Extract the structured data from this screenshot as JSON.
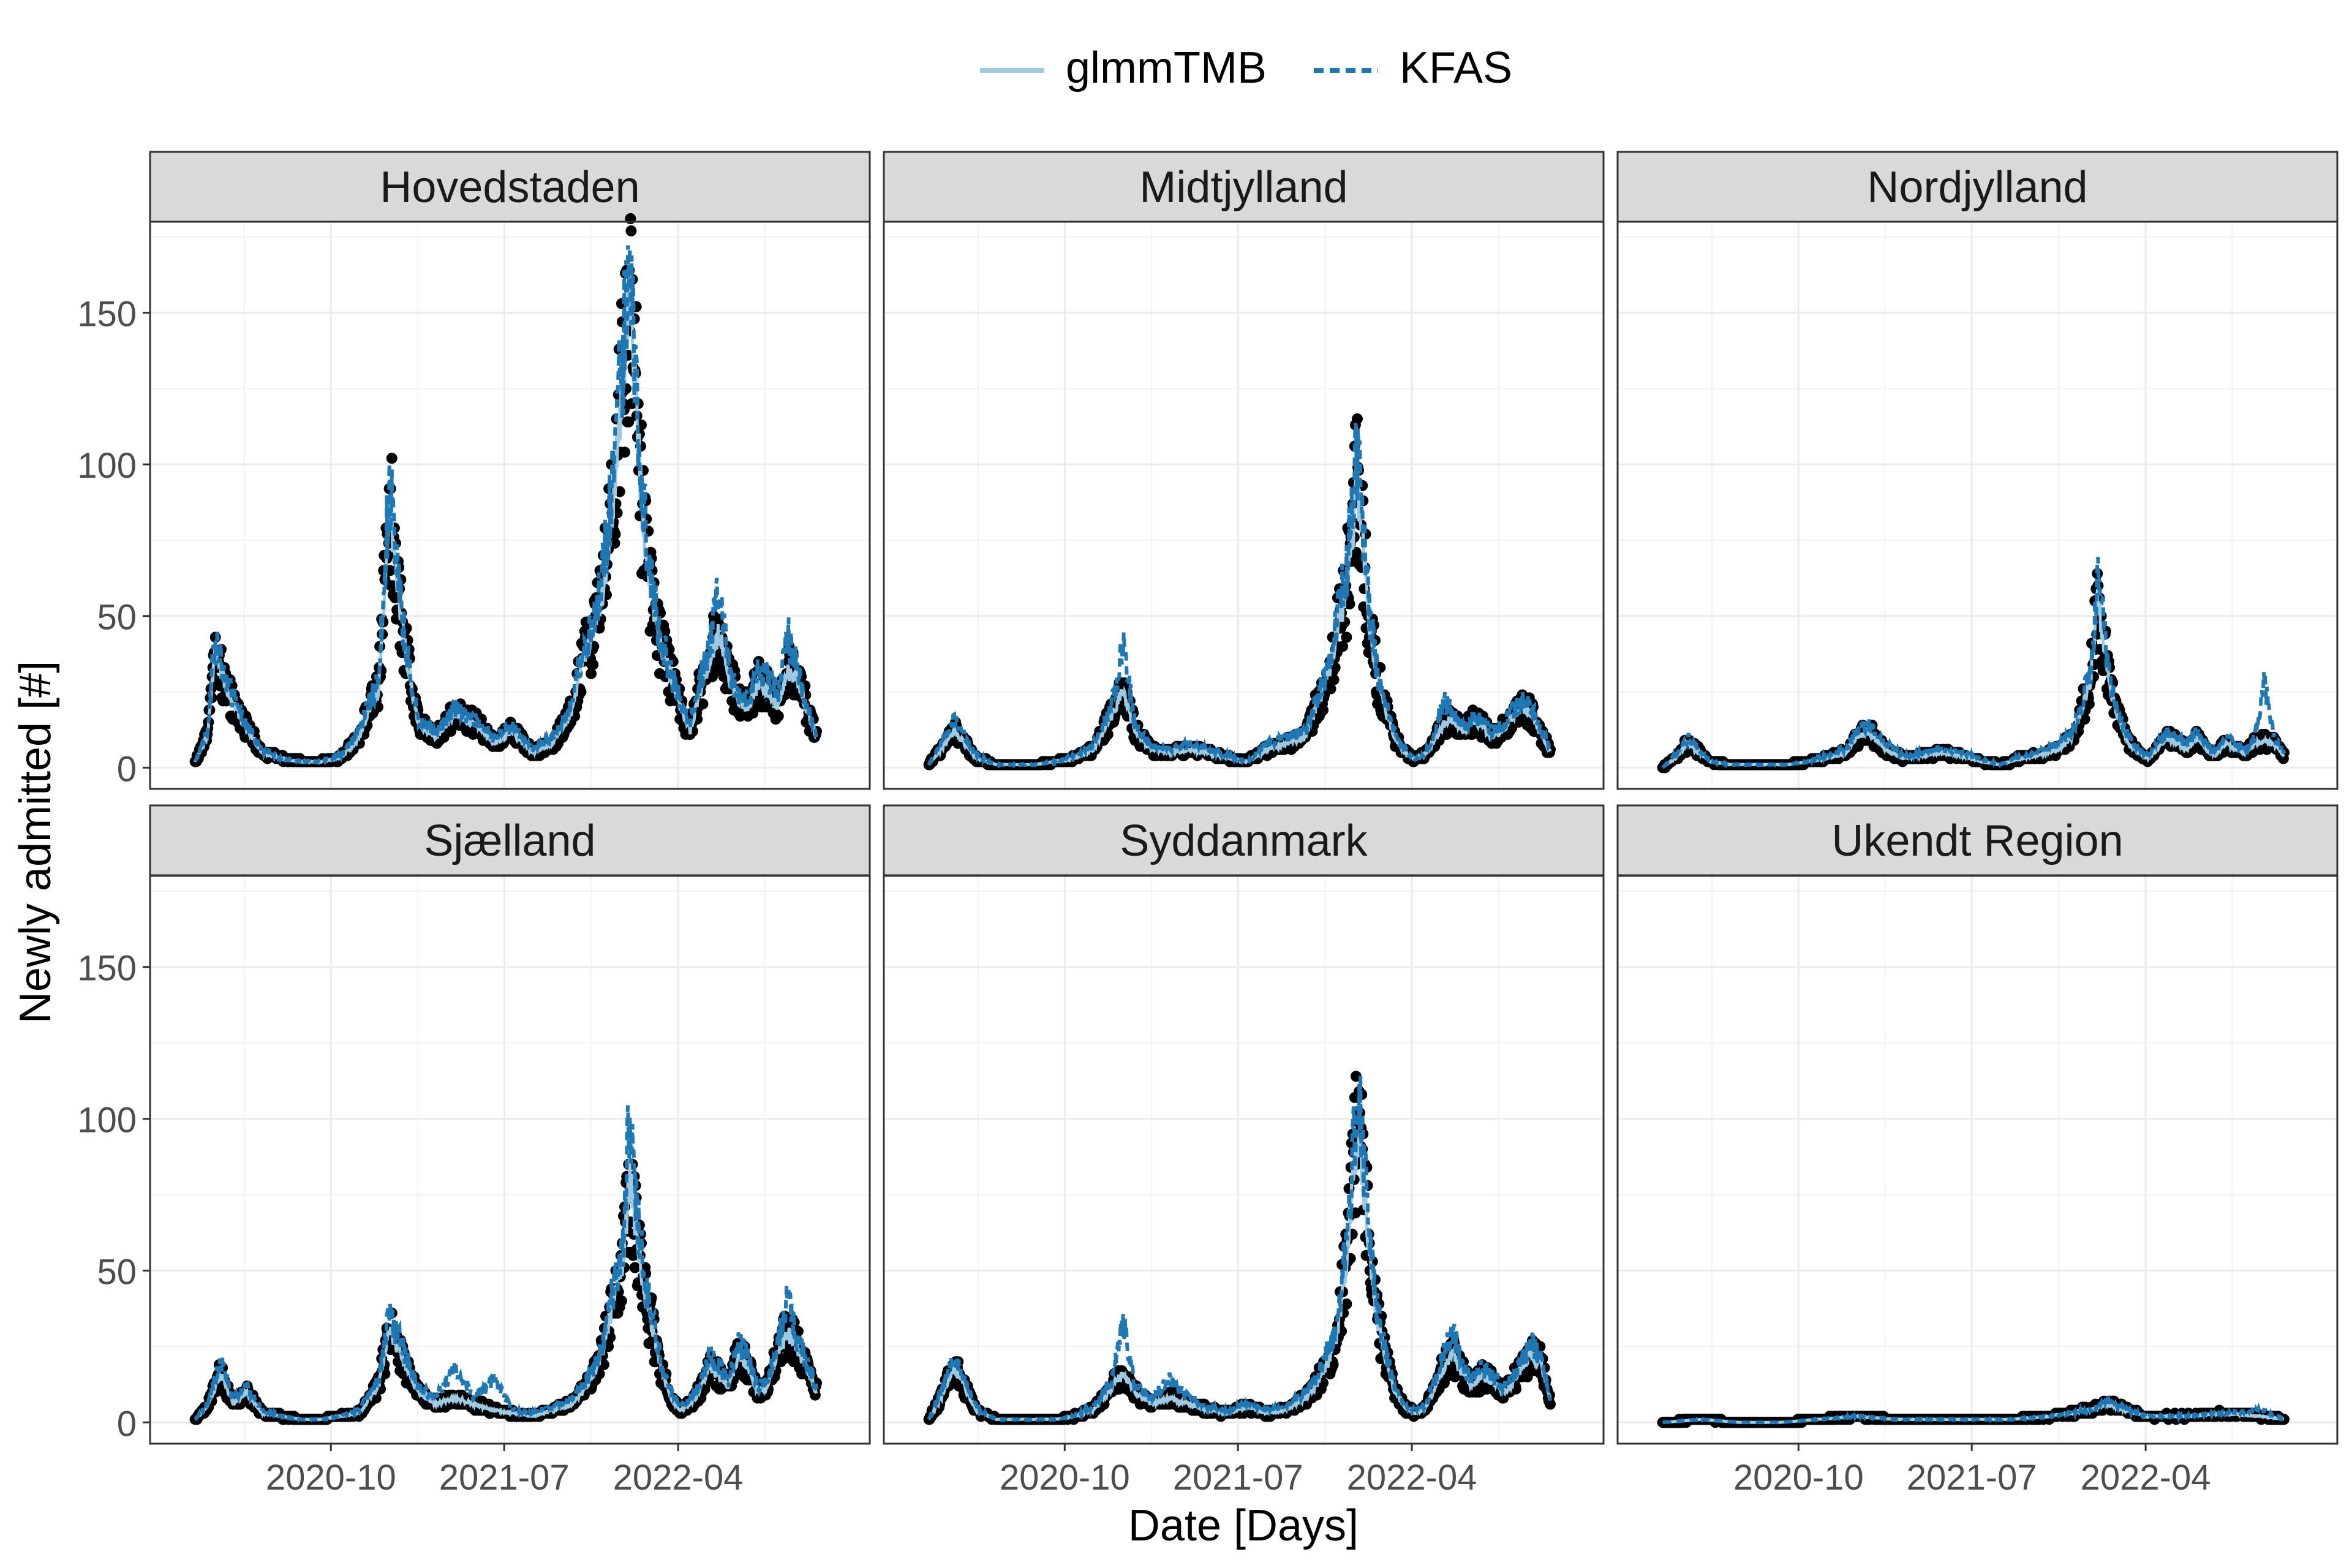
{
  "chart_data": {
    "type": "line",
    "layout": "facet-grid",
    "legend": {
      "position": "top",
      "entries": [
        {
          "label": "glmmTMB",
          "style": "solid",
          "color": "#9ecae1"
        },
        {
          "label": "KFAS",
          "style": "dashed",
          "color": "#1f78b4"
        }
      ]
    },
    "xlabel": "Date [Days]",
    "ylabel": "Newly admitted [#]",
    "x_ticks": [
      "2020-10",
      "2021-07",
      "2022-04"
    ],
    "y_ticks": [
      0,
      50,
      100,
      150
    ],
    "ylim": [
      -7,
      180
    ],
    "xlim": [
      "2019-12-21",
      "2023-01-28"
    ],
    "grid": true,
    "points_color": "#000000",
    "facets": [
      {
        "title": "Hovedstaden",
        "dates": [
          "2020-03-01",
          "2020-03-20",
          "2020-04-01",
          "2020-04-20",
          "2020-05-15",
          "2020-06-15",
          "2020-07-15",
          "2020-08-15",
          "2020-09-15",
          "2020-10-15",
          "2020-11-15",
          "2020-12-01",
          "2020-12-15",
          "2021-01-01",
          "2021-01-10",
          "2021-01-25",
          "2021-02-15",
          "2021-03-15",
          "2021-04-15",
          "2021-05-15",
          "2021-06-15",
          "2021-07-15",
          "2021-08-15",
          "2021-09-15",
          "2021-10-15",
          "2021-11-01",
          "2021-11-20",
          "2021-12-05",
          "2021-12-20",
          "2022-01-05",
          "2022-01-15",
          "2022-01-25",
          "2022-02-05",
          "2022-02-20",
          "2022-03-05",
          "2022-03-20",
          "2022-04-05",
          "2022-04-20",
          "2022-05-05",
          "2022-05-20",
          "2022-06-05",
          "2022-06-20",
          "2022-07-05",
          "2022-07-20",
          "2022-08-05",
          "2022-08-20",
          "2022-09-05",
          "2022-09-20",
          "2022-10-05",
          "2022-10-20",
          "2022-11-05"
        ],
        "glmmTMB": [
          2,
          10,
          38,
          25,
          15,
          5,
          3,
          2,
          2,
          3,
          10,
          20,
          25,
          88,
          70,
          40,
          15,
          10,
          18,
          15,
          8,
          12,
          5,
          8,
          18,
          35,
          45,
          60,
          90,
          130,
          160,
          120,
          80,
          55,
          40,
          30,
          20,
          12,
          25,
          35,
          45,
          30,
          22,
          20,
          28,
          25,
          20,
          32,
          30,
          20,
          10
        ],
        "KFAS": [
          2,
          12,
          42,
          28,
          16,
          6,
          3,
          2,
          2,
          4,
          12,
          22,
          28,
          92,
          74,
          42,
          16,
          12,
          20,
          16,
          10,
          14,
          6,
          10,
          20,
          38,
          50,
          66,
          96,
          140,
          172,
          130,
          86,
          58,
          42,
          32,
          22,
          14,
          28,
          40,
          58,
          34,
          24,
          22,
          32,
          30,
          24,
          44,
          34,
          22,
          10
        ]
      },
      {
        "title": "Midtjylland",
        "dates": [
          "2020-03-01",
          "2020-03-20",
          "2020-04-10",
          "2020-05-15",
          "2020-06-15",
          "2020-07-15",
          "2020-08-15",
          "2020-09-15",
          "2020-10-15",
          "2020-11-15",
          "2020-12-01",
          "2020-12-15",
          "2021-01-01",
          "2021-01-20",
          "2021-02-15",
          "2021-03-15",
          "2021-04-15",
          "2021-05-15",
          "2021-06-15",
          "2021-07-15",
          "2021-08-15",
          "2021-09-15",
          "2021-10-15",
          "2021-11-01",
          "2021-11-20",
          "2021-12-05",
          "2021-12-20",
          "2022-01-05",
          "2022-01-15",
          "2022-01-25",
          "2022-02-05",
          "2022-02-20",
          "2022-03-05",
          "2022-03-20",
          "2022-04-05",
          "2022-04-20",
          "2022-05-05",
          "2022-05-20",
          "2022-06-05",
          "2022-06-20",
          "2022-07-05",
          "2022-07-20",
          "2022-08-05",
          "2022-08-20",
          "2022-09-05",
          "2022-09-20",
          "2022-10-05",
          "2022-10-20",
          "2022-11-05"
        ],
        "glmmTMB": [
          1,
          6,
          12,
          3,
          1,
          1,
          1,
          2,
          3,
          6,
          12,
          18,
          25,
          12,
          6,
          5,
          6,
          5,
          3,
          2,
          6,
          8,
          10,
          20,
          30,
          45,
          60,
          95,
          70,
          45,
          30,
          18,
          10,
          5,
          3,
          4,
          8,
          14,
          16,
          12,
          15,
          14,
          10,
          12,
          16,
          20,
          18,
          12,
          5
        ],
        "KFAS": [
          1,
          8,
          16,
          4,
          1,
          1,
          1,
          2,
          4,
          7,
          14,
          22,
          40,
          14,
          7,
          6,
          8,
          6,
          4,
          2,
          8,
          10,
          12,
          22,
          34,
          50,
          66,
          105,
          78,
          50,
          32,
          20,
          12,
          6,
          3,
          4,
          10,
          22,
          18,
          14,
          16,
          16,
          12,
          14,
          18,
          22,
          20,
          14,
          6
        ]
      },
      {
        "title": "Nordjylland",
        "dates": [
          "2020-03-01",
          "2020-03-20",
          "2020-04-10",
          "2020-05-15",
          "2020-06-15",
          "2020-07-15",
          "2020-08-15",
          "2020-09-15",
          "2020-10-15",
          "2020-11-15",
          "2020-12-15",
          "2021-01-01",
          "2021-01-20",
          "2021-02-15",
          "2021-03-15",
          "2021-04-15",
          "2021-05-15",
          "2021-06-15",
          "2021-07-15",
          "2021-08-15",
          "2021-09-15",
          "2021-10-15",
          "2021-11-15",
          "2021-12-05",
          "2021-12-20",
          "2022-01-05",
          "2022-01-15",
          "2022-01-25",
          "2022-02-05",
          "2022-02-20",
          "2022-03-05",
          "2022-03-20",
          "2022-04-05",
          "2022-04-20",
          "2022-05-05",
          "2022-05-20",
          "2022-06-05",
          "2022-06-20",
          "2022-07-05",
          "2022-07-20",
          "2022-08-05",
          "2022-08-20",
          "2022-09-05",
          "2022-09-20",
          "2022-10-05",
          "2022-10-20",
          "2022-11-05"
        ],
        "glmmTMB": [
          0,
          3,
          8,
          2,
          1,
          1,
          1,
          1,
          2,
          3,
          5,
          10,
          12,
          6,
          3,
          4,
          5,
          4,
          2,
          1,
          3,
          4,
          6,
          10,
          18,
          30,
          55,
          40,
          25,
          15,
          8,
          5,
          3,
          6,
          10,
          8,
          6,
          10,
          6,
          4,
          8,
          6,
          5,
          8,
          9,
          8,
          4
        ],
        "KFAS": [
          0,
          4,
          10,
          2,
          1,
          1,
          1,
          1,
          2,
          4,
          6,
          12,
          14,
          8,
          4,
          5,
          6,
          5,
          3,
          1,
          4,
          5,
          8,
          12,
          20,
          34,
          62,
          46,
          28,
          16,
          10,
          6,
          4,
          8,
          12,
          10,
          8,
          12,
          8,
          5,
          10,
          8,
          6,
          10,
          28,
          10,
          5
        ]
      },
      {
        "title": "Sjælland",
        "dates": [
          "2020-03-01",
          "2020-03-20",
          "2020-04-10",
          "2020-05-01",
          "2020-05-20",
          "2020-06-15",
          "2020-07-15",
          "2020-08-15",
          "2020-09-15",
          "2020-10-15",
          "2020-11-15",
          "2020-12-01",
          "2020-12-15",
          "2021-01-01",
          "2021-01-20",
          "2021-02-15",
          "2021-03-15",
          "2021-04-15",
          "2021-05-15",
          "2021-06-15",
          "2021-07-15",
          "2021-08-15",
          "2021-09-15",
          "2021-10-15",
          "2021-11-01",
          "2021-11-20",
          "2021-12-05",
          "2021-12-20",
          "2022-01-05",
          "2022-01-15",
          "2022-01-25",
          "2022-02-05",
          "2022-02-20",
          "2022-03-05",
          "2022-03-20",
          "2022-04-05",
          "2022-04-20",
          "2022-05-05",
          "2022-05-20",
          "2022-06-05",
          "2022-06-20",
          "2022-07-05",
          "2022-07-20",
          "2022-08-05",
          "2022-08-20",
          "2022-09-05",
          "2022-09-20",
          "2022-10-05",
          "2022-10-20",
          "2022-11-05"
        ],
        "glmmTMB": [
          1,
          5,
          16,
          6,
          10,
          3,
          2,
          1,
          1,
          2,
          3,
          8,
          12,
          30,
          22,
          10,
          6,
          8,
          6,
          4,
          3,
          2,
          4,
          6,
          10,
          16,
          25,
          40,
          55,
          80,
          65,
          45,
          30,
          18,
          8,
          4,
          6,
          10,
          18,
          15,
          12,
          22,
          18,
          10,
          12,
          22,
          30,
          25,
          18,
          10
        ],
        "KFAS": [
          1,
          6,
          20,
          8,
          12,
          4,
          2,
          1,
          1,
          2,
          4,
          10,
          14,
          36,
          26,
          12,
          8,
          18,
          8,
          14,
          4,
          3,
          5,
          8,
          12,
          18,
          28,
          44,
          60,
          104,
          72,
          50,
          34,
          20,
          10,
          5,
          8,
          12,
          22,
          18,
          14,
          26,
          22,
          12,
          14,
          26,
          40,
          28,
          20,
          12
        ]
      },
      {
        "title": "Syddanmark",
        "dates": [
          "2020-03-01",
          "2020-03-20",
          "2020-04-10",
          "2020-05-15",
          "2020-06-15",
          "2020-07-15",
          "2020-08-15",
          "2020-09-15",
          "2020-10-15",
          "2020-11-15",
          "2020-12-01",
          "2020-12-15",
          "2021-01-01",
          "2021-01-20",
          "2021-02-15",
          "2021-03-15",
          "2021-04-15",
          "2021-05-15",
          "2021-06-15",
          "2021-07-15",
          "2021-08-15",
          "2021-09-15",
          "2021-10-15",
          "2021-11-01",
          "2021-11-20",
          "2021-12-05",
          "2021-12-20",
          "2022-01-05",
          "2022-01-15",
          "2022-01-25",
          "2022-02-05",
          "2022-02-20",
          "2022-03-05",
          "2022-03-20",
          "2022-04-05",
          "2022-04-20",
          "2022-05-05",
          "2022-05-20",
          "2022-06-05",
          "2022-06-20",
          "2022-07-05",
          "2022-07-20",
          "2022-08-05",
          "2022-08-20",
          "2022-09-05",
          "2022-09-20",
          "2022-10-05",
          "2022-10-20",
          "2022-11-05"
        ],
        "glmmTMB": [
          1,
          8,
          18,
          4,
          1,
          1,
          1,
          1,
          2,
          4,
          8,
          12,
          16,
          10,
          6,
          8,
          6,
          4,
          3,
          5,
          3,
          4,
          8,
          12,
          20,
          30,
          55,
          95,
          80,
          55,
          35,
          20,
          10,
          5,
          3,
          4,
          10,
          18,
          22,
          16,
          12,
          15,
          14,
          10,
          12,
          18,
          22,
          20,
          8
        ],
        "KFAS": [
          1,
          10,
          22,
          5,
          1,
          1,
          1,
          1,
          2,
          5,
          10,
          14,
          33,
          12,
          8,
          14,
          8,
          5,
          4,
          6,
          4,
          5,
          10,
          14,
          24,
          34,
          60,
          110,
          88,
          60,
          38,
          22,
          12,
          6,
          4,
          5,
          12,
          22,
          30,
          18,
          14,
          18,
          16,
          12,
          14,
          20,
          26,
          22,
          8
        ]
      },
      {
        "title": "Ukendt Region",
        "dates": [
          "2020-03-01",
          "2020-05-01",
          "2020-07-01",
          "2020-09-01",
          "2020-11-01",
          "2021-01-01",
          "2021-03-01",
          "2021-05-01",
          "2021-07-01",
          "2021-09-01",
          "2021-11-01",
          "2022-01-01",
          "2022-02-01",
          "2022-04-01",
          "2022-06-01",
          "2022-08-01",
          "2022-10-01",
          "2022-11-05"
        ],
        "glmmTMB": [
          0,
          1,
          0,
          0,
          1,
          2,
          1,
          1,
          1,
          1,
          2,
          4,
          6,
          2,
          2,
          3,
          2,
          1
        ],
        "KFAS": [
          0,
          1,
          0,
          0,
          1,
          2,
          1,
          1,
          1,
          1,
          2,
          4,
          7,
          2,
          2,
          3,
          4,
          1
        ]
      }
    ]
  },
  "page": {
    "background": "#ffffff"
  }
}
